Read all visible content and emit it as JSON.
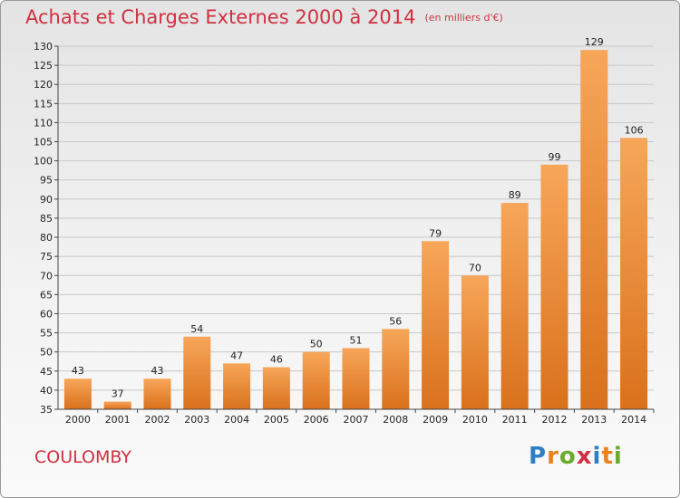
{
  "title": "Achats et Charges Externes 2000 à 2014",
  "unit_note": "(en milliers d'€)",
  "commune": "COULOMBY",
  "logo": {
    "text": "Proxiti",
    "letters": [
      {
        "char": "P",
        "color": "#2f7fc4"
      },
      {
        "char": "r",
        "color": "#e8821e"
      },
      {
        "char": "o",
        "color": "#6aab2e"
      },
      {
        "char": "x",
        "color": "#d03040"
      },
      {
        "char": "i",
        "color": "#2f7fc4"
      },
      {
        "char": "t",
        "color": "#e8821e"
      },
      {
        "char": "i",
        "color": "#6aab2e"
      }
    ]
  },
  "colors": {
    "title": "#d03040",
    "bar_light": "#f7a659",
    "bar_dark": "#d9711c",
    "grid": "#c8c8c8"
  },
  "chart_data": {
    "type": "bar",
    "categories": [
      "2000",
      "2001",
      "2002",
      "2003",
      "2004",
      "2005",
      "2006",
      "2007",
      "2008",
      "2009",
      "2010",
      "2011",
      "2012",
      "2013",
      "2014"
    ],
    "values": [
      43,
      37,
      43,
      54,
      47,
      46,
      50,
      51,
      56,
      79,
      70,
      89,
      99,
      129,
      106
    ],
    "ylim": [
      35,
      130
    ],
    "yticks": [
      35,
      40,
      45,
      50,
      55,
      60,
      65,
      70,
      75,
      80,
      85,
      90,
      95,
      100,
      105,
      110,
      115,
      120,
      125,
      130
    ],
    "grid": true,
    "data_labels": true
  }
}
